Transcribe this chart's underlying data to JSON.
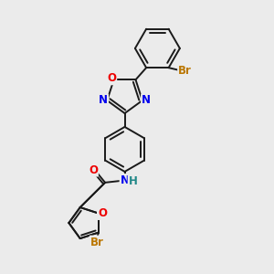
{
  "bg_color": "#ebebeb",
  "bond_color": "#1a1a1a",
  "bond_width": 1.4,
  "atom_colors": {
    "N": "#0000ee",
    "O": "#ee0000",
    "Br": "#bb7700",
    "H": "#228888",
    "C": "#1a1a1a"
  },
  "font_size": 8.5,
  "fig_w": 3.0,
  "fig_h": 3.0,
  "dpi": 100
}
